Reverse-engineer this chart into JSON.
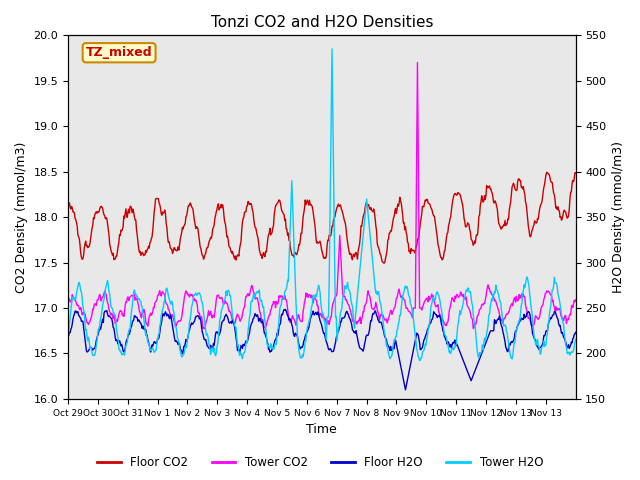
{
  "title": "Tonzi CO2 and H2O Densities",
  "xlabel": "Time",
  "ylabel_left": "CO2 Density (mmol/m3)",
  "ylabel_right": "H2O Density (mmol/m3)",
  "ylim_left": [
    16.0,
    20.0
  ],
  "ylim_right": [
    150,
    550
  ],
  "annotation_text": "TZ_mixed",
  "annotation_facecolor": "#ffffcc",
  "annotation_edgecolor": "#cc8800",
  "annotation_textcolor": "#cc0000",
  "legend_labels": [
    "Floor CO2",
    "Tower CO2",
    "Floor H2O",
    "Tower H2O"
  ],
  "floor_co2_color": "#cc0000",
  "tower_co2_color": "#ff00ff",
  "floor_h2o_color": "#0000cc",
  "tower_h2o_color": "#00ccff",
  "axes_facecolor": "#e8e8e8",
  "date_labels": [
    "Oct 29",
    "Oct 30",
    "Oct 31",
    "Nov 1",
    "Nov 2",
    "Nov 3",
    "Nov 4",
    "Nov 5",
    "Nov 6",
    "Nov 7",
    "Nov 8",
    "Nov 9",
    "Nov 10",
    "Nov 11",
    "Nov 12",
    "Nov 13"
  ],
  "n_points": 720,
  "start_day": 29.0,
  "end_day": 46.0
}
